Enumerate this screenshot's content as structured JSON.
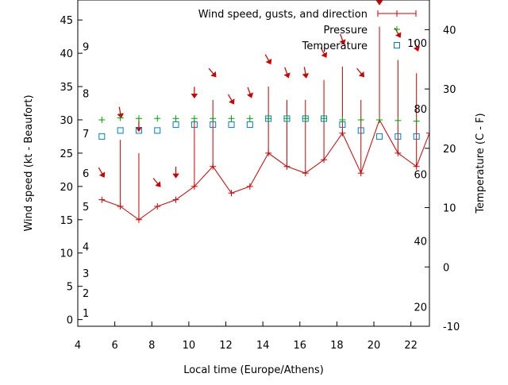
{
  "chart_data": {
    "type": "line",
    "xlabel": "Local time (Europe/Athens)",
    "ylabel": "Wind speed (kt - Beaufort)",
    "y2label": "Temperature (C - F)",
    "xlim": [
      4,
      23
    ],
    "ylim": [
      -1,
      48
    ],
    "y2lim": [
      -10,
      45
    ],
    "x_ticks": [
      4,
      6,
      8,
      10,
      12,
      14,
      16,
      18,
      20,
      22
    ],
    "y_ticks": [
      0,
      5,
      10,
      15,
      20,
      25,
      30,
      35,
      40,
      45
    ],
    "y2_ticks": [
      -10,
      0,
      10,
      20,
      30,
      40
    ],
    "fahrenheit_labels": [
      {
        "label": "20",
        "celsius": -6.7
      },
      {
        "label": "40",
        "celsius": 4.4
      },
      {
        "label": "60",
        "celsius": 15.6
      },
      {
        "label": "80",
        "celsius": 26.7
      },
      {
        "label": "100",
        "celsius": 37.8
      }
    ],
    "beaufort_labels": [
      {
        "label": "1",
        "kt": 1
      },
      {
        "label": "2",
        "kt": 4
      },
      {
        "label": "3",
        "kt": 7
      },
      {
        "label": "4",
        "kt": 11
      },
      {
        "label": "5",
        "kt": 17
      },
      {
        "label": "6",
        "kt": 22
      },
      {
        "label": "7",
        "kt": 28
      },
      {
        "label": "8",
        "kt": 34
      },
      {
        "label": "9",
        "kt": 41
      }
    ],
    "legend": [
      {
        "name": "Wind speed, gusts, and direction",
        "color": "#cc0000",
        "marker": "errorbar"
      },
      {
        "name": "Pressure",
        "color": "#00a000",
        "marker": "plus"
      },
      {
        "name": "Temperature",
        "color": "#0080c0",
        "marker": "square"
      }
    ],
    "legend_position": "top-right",
    "wind": {
      "x": [
        5.3,
        6.3,
        7.3,
        8.3,
        9.3,
        10.3,
        11.3,
        12.3,
        13.3,
        14.3,
        15.3,
        16.3,
        17.3,
        18.3,
        19.3,
        20.3,
        21.3,
        22.3,
        23.0
      ],
      "speed": [
        18,
        17,
        15,
        17,
        18,
        20,
        23,
        19,
        20,
        25,
        23,
        22,
        24,
        28,
        22,
        30,
        25,
        23,
        28
      ],
      "gust": [
        18,
        27,
        25,
        17,
        18,
        30,
        33,
        19,
        20,
        35,
        33,
        33,
        36,
        38,
        33,
        44,
        39,
        37,
        28
      ]
    },
    "wind_arrows": {
      "x": [
        5.3,
        6.3,
        7.3,
        8.3,
        9.3,
        10.3,
        11.3,
        12.3,
        13.3,
        14.3,
        15.3,
        16.3,
        17.3,
        18.3,
        19.3,
        20.3,
        21.3,
        22.3
      ],
      "y": [
        22,
        31,
        29,
        20.5,
        22,
        34,
        37,
        33,
        34,
        39,
        37,
        37,
        40,
        42,
        37,
        48,
        43,
        41
      ],
      "direction_deg": [
        330,
        350,
        0,
        320,
        360,
        0,
        320,
        330,
        340,
        330,
        340,
        350,
        330,
        340,
        320,
        0,
        330,
        340
      ]
    },
    "pressure": {
      "x": [
        5.3,
        6.3,
        7.3,
        8.3,
        9.3,
        10.3,
        11.3,
        12.3,
        13.3,
        14.3,
        15.3,
        16.3,
        17.3,
        18.3,
        19.3,
        20.3,
        21.3,
        22.3
      ],
      "y": [
        30,
        30.3,
        30.2,
        30.2,
        30.2,
        30.2,
        30.2,
        30.2,
        30.2,
        30.2,
        30.2,
        30.2,
        30.2,
        30,
        30,
        30,
        29.9,
        29.8
      ]
    },
    "temperature": {
      "x": [
        5.3,
        6.3,
        7.3,
        8.3,
        9.3,
        10.3,
        11.3,
        12.3,
        13.3,
        14.3,
        15.3,
        16.3,
        17.3,
        18.3,
        19.3,
        20.3,
        21.3,
        22.3
      ],
      "y": [
        22,
        23,
        23,
        23,
        24,
        24,
        24,
        24,
        24,
        25,
        25,
        25,
        25,
        24,
        23,
        22,
        22,
        22
      ]
    }
  }
}
